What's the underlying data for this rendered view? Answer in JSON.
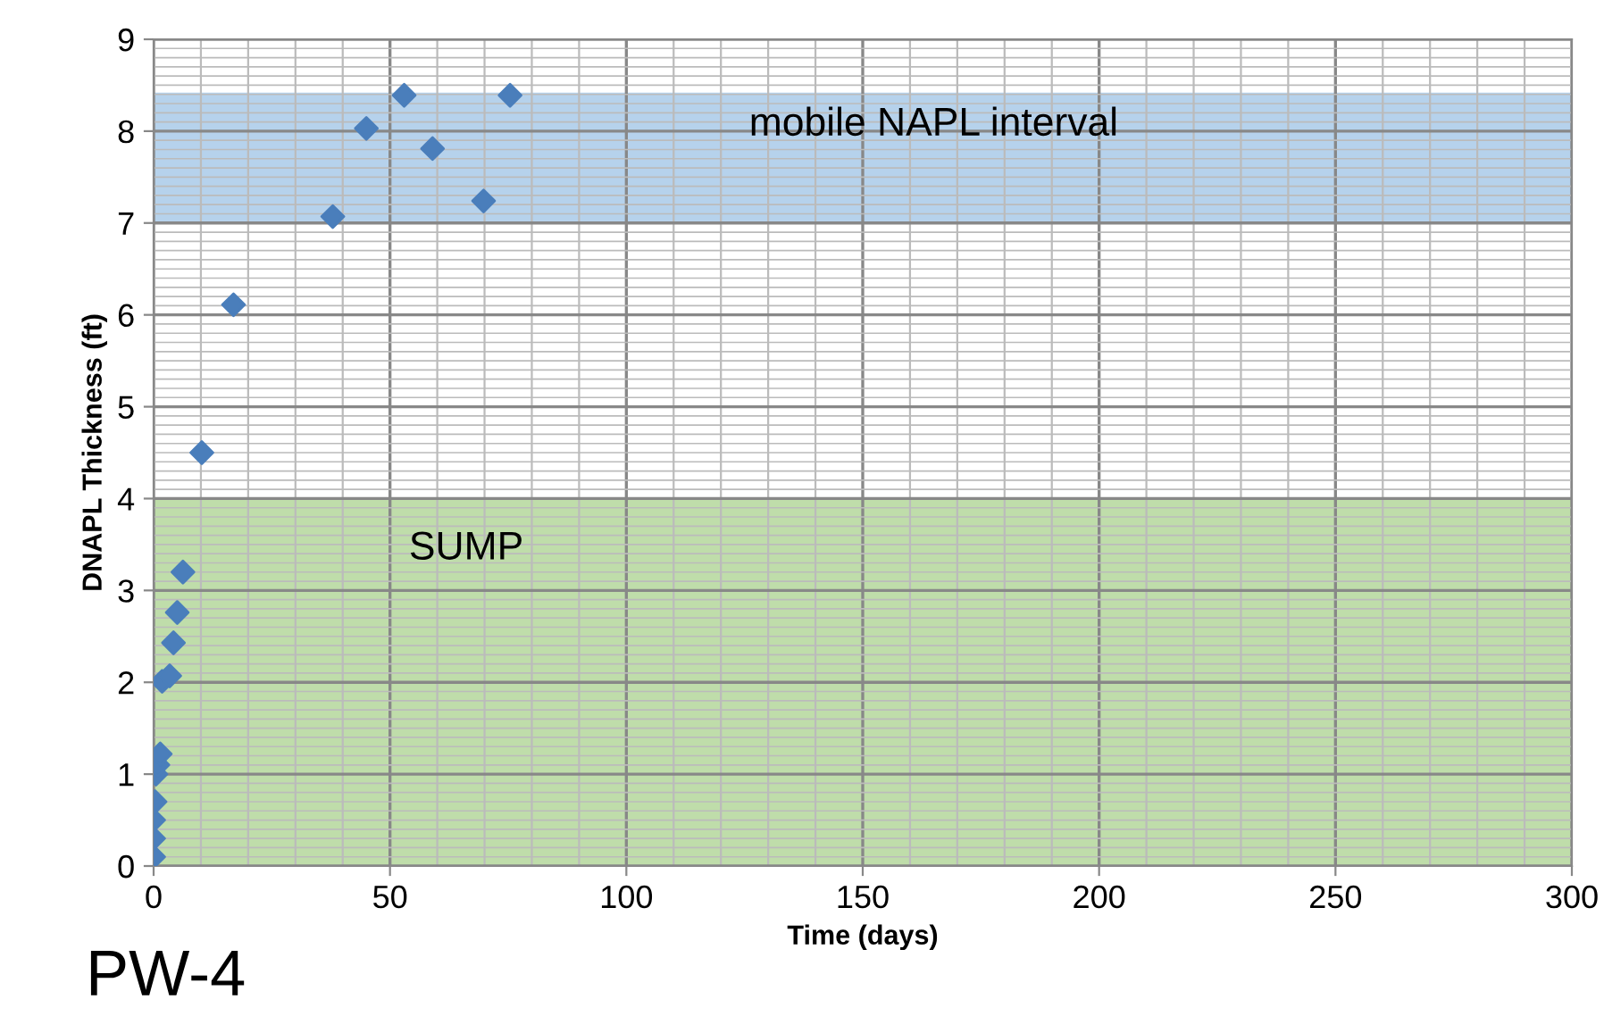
{
  "chart_data": {
    "type": "scatter",
    "xlabel": "Time (days)",
    "ylabel": "DNAPL Thickness (ft)",
    "x": [
      0,
      0,
      0,
      0.3,
      0.5,
      0.9,
      1.4,
      1.8,
      3.4,
      4.2,
      5,
      6.2,
      10.2,
      16.9,
      37.9,
      45,
      53,
      59,
      69.8,
      75.4
    ],
    "series": [
      {
        "color": "#4a7ebb",
        "values": [
          0.1,
          0.3,
          0.5,
          0.7,
          1.0,
          1.1,
          1.22,
          2.01,
          2.07,
          2.43,
          2.76,
          3.2,
          4.5,
          6.11,
          7.07,
          8.03,
          8.39,
          7.81,
          7.24,
          8.39
        ]
      }
    ],
    "marker": "diamond",
    "xlim": [
      0,
      300
    ],
    "ylim": [
      0,
      9
    ],
    "xticks": [
      0,
      50,
      100,
      150,
      200,
      250,
      300
    ],
    "yticks": [
      0,
      1,
      2,
      3,
      4,
      5,
      6,
      7,
      8,
      9
    ],
    "grid": true,
    "bands": [
      {
        "axis": "y",
        "from": 0,
        "to": 4,
        "label": "SUMP",
        "color": "#a9d18e"
      },
      {
        "axis": "y",
        "from": 7,
        "to": 8.42,
        "label": "mobile NAPL interval",
        "color": "#9dc3e6"
      }
    ],
    "annotations": [
      "PW-4"
    ]
  }
}
